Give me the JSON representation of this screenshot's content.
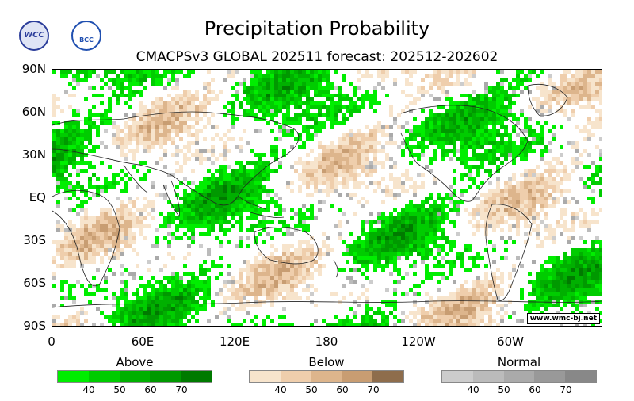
{
  "header": {
    "title": "Precipitation Probability",
    "subtitle": "CMACPSv3 GLOBAL 202511 forecast: 202512-202602",
    "logos": [
      {
        "text": "WCC",
        "color": "#2b3d9a"
      },
      {
        "text": "BCC",
        "color": "#1f4fb0"
      }
    ]
  },
  "axes": {
    "lat_labels": [
      "90N",
      "60N",
      "30N",
      "EQ",
      "30S",
      "60S",
      "90S"
    ],
    "lon_labels": [
      "0",
      "60E",
      "120E",
      "180",
      "120W",
      "60W"
    ]
  },
  "credit": "www.wmc-bj.net",
  "legend": [
    {
      "title": "Above",
      "ticks": [
        "40",
        "50",
        "60",
        "70"
      ],
      "colors": [
        "#00ee00",
        "#00cc00",
        "#00b000",
        "#009900",
        "#007a00"
      ]
    },
    {
      "title": "Below",
      "ticks": [
        "40",
        "50",
        "60",
        "70"
      ],
      "colors": [
        "#f7e4cc",
        "#efceac",
        "#ddb58c",
        "#c89d72",
        "#8e6d4c"
      ]
    },
    {
      "title": "Normal",
      "ticks": [
        "40",
        "50",
        "60",
        "70"
      ],
      "colors": [
        "#cccccc",
        "#bbbbbb",
        "#aaaaaa",
        "#999999",
        "#888888"
      ]
    }
  ]
}
